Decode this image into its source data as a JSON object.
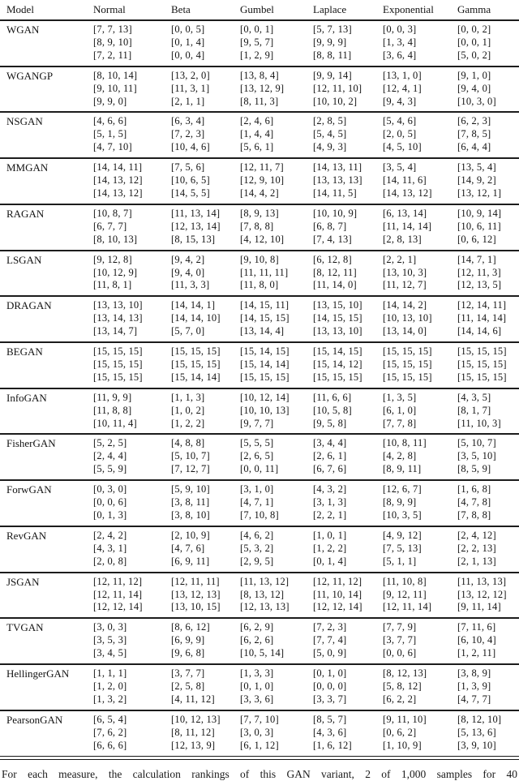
{
  "page": {
    "background": "#ffffff",
    "text_color": "#141414",
    "rule_color": "#1c1c1c"
  },
  "table": {
    "columns": [
      "Model",
      "Normal",
      "Beta",
      "Gumbel",
      "Laplace",
      "Exponential",
      "Gamma"
    ],
    "rows": [
      {
        "model": "WGAN",
        "cells": [
          [
            "[7, 7, 13]",
            "[8, 9, 10]",
            "[7, 2, 11]"
          ],
          [
            "[0, 0, 5]",
            "[0, 1, 4]",
            "[0, 0, 4]"
          ],
          [
            "[0, 0, 1]",
            "[9, 5, 7]",
            "[1, 2, 9]"
          ],
          [
            "[5, 7, 13]",
            "[9, 9, 9]",
            "[8, 8, 11]"
          ],
          [
            "[0, 0, 3]",
            "[1, 3, 4]",
            "[3, 6, 4]"
          ],
          [
            "[0, 0, 2]",
            "[0, 0, 1]",
            "[5, 0, 2]"
          ]
        ]
      },
      {
        "model": "WGANGP",
        "cells": [
          [
            "[8, 10, 14]",
            "[9, 10, 11]",
            "[9, 9, 0]"
          ],
          [
            "[13, 2, 0]",
            "[11, 3, 1]",
            "[2, 1, 1]"
          ],
          [
            "[13, 8, 4]",
            "[13, 12, 9]",
            "[8, 11, 3]"
          ],
          [
            "[9, 9, 14]",
            "[12, 11, 10]",
            "[10, 10, 2]"
          ],
          [
            "[13, 1, 0]",
            "[12, 4, 1]",
            "[9, 4, 3]"
          ],
          [
            "[9, 1, 0]",
            "[9, 4, 0]",
            "[10, 3, 0]"
          ]
        ]
      },
      {
        "model": "NSGAN",
        "cells": [
          [
            "[4, 6, 6]",
            "[5, 1, 5]",
            "[4, 7, 10]"
          ],
          [
            "[6, 3, 4]",
            "[7, 2, 3]",
            "[10, 4, 6]"
          ],
          [
            "[2, 4, 6]",
            "[1, 4, 4]",
            "[5, 6, 1]"
          ],
          [
            "[2, 8, 5]",
            "[5, 4, 5]",
            "[4, 9, 3]"
          ],
          [
            "[5, 4, 6]",
            "[2, 0, 5]",
            "[4, 5, 10]"
          ],
          [
            "[6, 2, 3]",
            "[7, 8, 5]",
            "[6, 4, 4]"
          ]
        ]
      },
      {
        "model": "MMGAN",
        "cells": [
          [
            "[14, 14, 11]",
            "[14, 13, 12]",
            "[14, 13, 12]"
          ],
          [
            "[7, 5, 6]",
            "[10, 6, 5]",
            "[14, 5, 5]"
          ],
          [
            "[12, 11, 7]",
            "[12, 9, 10]",
            "[14, 4, 2]"
          ],
          [
            "[14, 13, 11]",
            "[13, 13, 13]",
            "[14, 11, 5]"
          ],
          [
            "[3, 5, 4]",
            "[14, 11, 6]",
            "[14, 13, 12]"
          ],
          [
            "[13, 5, 4]",
            "[14, 9, 2]",
            "[13, 12, 1]"
          ]
        ]
      },
      {
        "model": "RAGAN",
        "cells": [
          [
            "[10, 8, 7]",
            "[6, 7, 7]",
            "[8, 10, 13]"
          ],
          [
            "[11, 13, 14]",
            "[12, 13, 14]",
            "[8, 15, 13]"
          ],
          [
            "[8, 9, 13]",
            "[7, 8, 8]",
            "[4, 12, 10]"
          ],
          [
            "[10, 10, 9]",
            "[6, 8, 7]",
            "[7, 4, 13]"
          ],
          [
            "[6, 13, 14]",
            "[11, 14, 14]",
            "[2, 8, 13]"
          ],
          [
            "[10, 9, 14]",
            "[10, 6, 11]",
            "[0, 6, 12]"
          ]
        ]
      },
      {
        "model": "LSGAN",
        "cells": [
          [
            "[9, 12, 8]",
            "[10, 12, 9]",
            "[11, 8, 1]"
          ],
          [
            "[9, 4, 2]",
            "[9, 4, 0]",
            "[11, 3, 3]"
          ],
          [
            "[9, 10, 8]",
            "[11, 11, 11]",
            "[11, 8, 0]"
          ],
          [
            "[6, 12, 8]",
            "[8, 12, 11]",
            "[11, 14, 0]"
          ],
          [
            "[2, 2, 1]",
            "[13, 10, 3]",
            "[11, 12, 7]"
          ],
          [
            "[14, 7, 1]",
            "[12, 11, 3]",
            "[12, 13, 5]"
          ]
        ]
      },
      {
        "model": "DRAGAN",
        "cells": [
          [
            "[13, 13, 10]",
            "[13, 14, 13]",
            "[13, 14, 7]"
          ],
          [
            "[14, 14, 1]",
            "[14, 14, 10]",
            "[5, 7, 0]"
          ],
          [
            "[14, 15, 11]",
            "[14, 15, 15]",
            "[13, 14, 4]"
          ],
          [
            "[13, 15, 10]",
            "[14, 15, 15]",
            "[13, 13, 10]"
          ],
          [
            "[14, 14, 2]",
            "[10, 13, 10]",
            "[13, 14, 0]"
          ],
          [
            "[12, 14, 11]",
            "[11, 14, 14]",
            "[14, 14, 6]"
          ]
        ]
      },
      {
        "model": "BEGAN",
        "cells": [
          [
            "[15, 15, 15]",
            "[15, 15, 15]",
            "[15, 15, 15]"
          ],
          [
            "[15, 15, 15]",
            "[15, 15, 15]",
            "[15, 14, 14]"
          ],
          [
            "[15, 14, 15]",
            "[15, 14, 14]",
            "[15, 15, 15]"
          ],
          [
            "[15, 14, 15]",
            "[15, 14, 12]",
            "[15, 15, 15]"
          ],
          [
            "[15, 15, 15]",
            "[15, 15, 15]",
            "[15, 15, 15]"
          ],
          [
            "[15, 15, 15]",
            "[15, 15, 15]",
            "[15, 15, 15]"
          ]
        ]
      },
      {
        "model": "InfoGAN",
        "cells": [
          [
            "[11, 9, 9]",
            "[11, 8, 8]",
            "[10, 11, 4]"
          ],
          [
            "[1, 1, 3]",
            "[1, 0, 2]",
            "[1, 2, 2]"
          ],
          [
            "[10, 12, 14]",
            "[10, 10, 13]",
            "[9, 7, 7]"
          ],
          [
            "[11, 6, 6]",
            "[10, 5, 8]",
            "[9, 5, 8]"
          ],
          [
            "[1, 3, 5]",
            "[6, 1, 0]",
            "[7, 7, 8]"
          ],
          [
            "[4, 3, 5]",
            "[8, 1, 7]",
            "[11, 10, 3]"
          ]
        ]
      },
      {
        "model": "FisherGAN",
        "cells": [
          [
            "[5, 2, 5]",
            "[2, 4, 4]",
            "[5, 5, 9]"
          ],
          [
            "[4, 8, 8]",
            "[5, 10, 7]",
            "[7, 12, 7]"
          ],
          [
            "[5, 5, 5]",
            "[2, 6, 5]",
            "[0, 0, 11]"
          ],
          [
            "[3, 4, 4]",
            "[2, 6, 1]",
            "[6, 7, 6]"
          ],
          [
            "[10, 8, 11]",
            "[4, 2, 8]",
            "[8, 9, 11]"
          ],
          [
            "[5, 10, 7]",
            "[3, 5, 10]",
            "[8, 5, 9]"
          ]
        ]
      },
      {
        "model": "ForwGAN",
        "cells": [
          [
            "[0, 3, 0]",
            "[0, 0, 6]",
            "[0, 1, 3]"
          ],
          [
            "[5, 9, 10]",
            "[3, 8, 11]",
            "[3, 8, 10]"
          ],
          [
            "[3, 1, 0]",
            "[4, 7, 1]",
            "[7, 10, 8]"
          ],
          [
            "[4, 3, 2]",
            "[3, 1, 3]",
            "[2, 2, 1]"
          ],
          [
            "[12, 6, 7]",
            "[8, 9, 9]",
            "[10, 3, 5]"
          ],
          [
            "[1, 6, 8]",
            "[4, 7, 8]",
            "[7, 8, 8]"
          ]
        ]
      },
      {
        "model": "RevGAN",
        "cells": [
          [
            "[2, 4, 2]",
            "[4, 3, 1]",
            "[2, 0, 8]"
          ],
          [
            "[2, 10, 9]",
            "[4, 7, 6]",
            "[6, 9, 11]"
          ],
          [
            "[4, 6, 2]",
            "[5, 3, 2]",
            "[2, 9, 5]"
          ],
          [
            "[1, 0, 1]",
            "[1, 2, 2]",
            "[0, 1, 4]"
          ],
          [
            "[4, 9, 12]",
            "[7, 5, 13]",
            "[5, 1, 1]"
          ],
          [
            "[2, 4, 12]",
            "[2, 2, 13]",
            "[2, 1, 13]"
          ]
        ]
      },
      {
        "model": "JSGAN",
        "cells": [
          [
            "[12, 11, 12]",
            "[12, 11, 14]",
            "[12, 12, 14]"
          ],
          [
            "[12, 11, 11]",
            "[13, 12, 13]",
            "[13, 10, 15]"
          ],
          [
            "[11, 13, 12]",
            "[8, 13, 12]",
            "[12, 13, 13]"
          ],
          [
            "[12, 11, 12]",
            "[11, 10, 14]",
            "[12, 12, 14]"
          ],
          [
            "[11, 10, 8]",
            "[9, 12, 11]",
            "[12, 11, 14]"
          ],
          [
            "[11, 13, 13]",
            "[13, 12, 12]",
            "[9, 11, 14]"
          ]
        ]
      },
      {
        "model": "TVGAN",
        "cells": [
          [
            "[3, 0, 3]",
            "[3, 5, 3]",
            "[3, 4, 5]"
          ],
          [
            "[8, 6, 12]",
            "[6, 9, 9]",
            "[9, 6, 8]"
          ],
          [
            "[6, 2, 9]",
            "[6, 2, 6]",
            "[10, 5, 14]"
          ],
          [
            "[7, 2, 3]",
            "[7, 7, 4]",
            "[5, 0, 9]"
          ],
          [
            "[7, 7, 9]",
            "[3, 7, 7]",
            "[0, 0, 6]"
          ],
          [
            "[7, 11, 6]",
            "[6, 10, 4]",
            "[1, 2, 11]"
          ]
        ]
      },
      {
        "model": "HellingerGAN",
        "cells": [
          [
            "[1, 1, 1]",
            "[1, 2, 0]",
            "[1, 3, 2]"
          ],
          [
            "[3, 7, 7]",
            "[2, 5, 8]",
            "[4, 11, 12]"
          ],
          [
            "[1, 3, 3]",
            "[0, 1, 0]",
            "[3, 3, 6]"
          ],
          [
            "[0, 1, 0]",
            "[0, 0, 0]",
            "[3, 3, 7]"
          ],
          [
            "[8, 12, 13]",
            "[5, 8, 12]",
            "[6, 2, 2]"
          ],
          [
            "[3, 8, 9]",
            "[1, 3, 9]",
            "[4, 7, 7]"
          ]
        ]
      },
      {
        "model": "PearsonGAN",
        "cells": [
          [
            "[6, 5, 4]",
            "[7, 6, 2]",
            "[6, 6, 6]"
          ],
          [
            "[10, 12, 13]",
            "[8, 11, 12]",
            "[12, 13, 9]"
          ],
          [
            "[7, 7, 10]",
            "[3, 0, 3]",
            "[6, 1, 12]"
          ],
          [
            "[8, 5, 7]",
            "[4, 3, 6]",
            "[1, 6, 12]"
          ],
          [
            "[9, 11, 10]",
            "[0, 6, 2]",
            "[1, 10, 9]"
          ],
          [
            "[8, 12, 10]",
            "[5, 13, 6]",
            "[3, 9, 10]"
          ]
        ]
      }
    ]
  },
  "caption_partial": "For each measure, the calculation rankings of this GAN variant, 2 of 1,000 samples for 40"
}
